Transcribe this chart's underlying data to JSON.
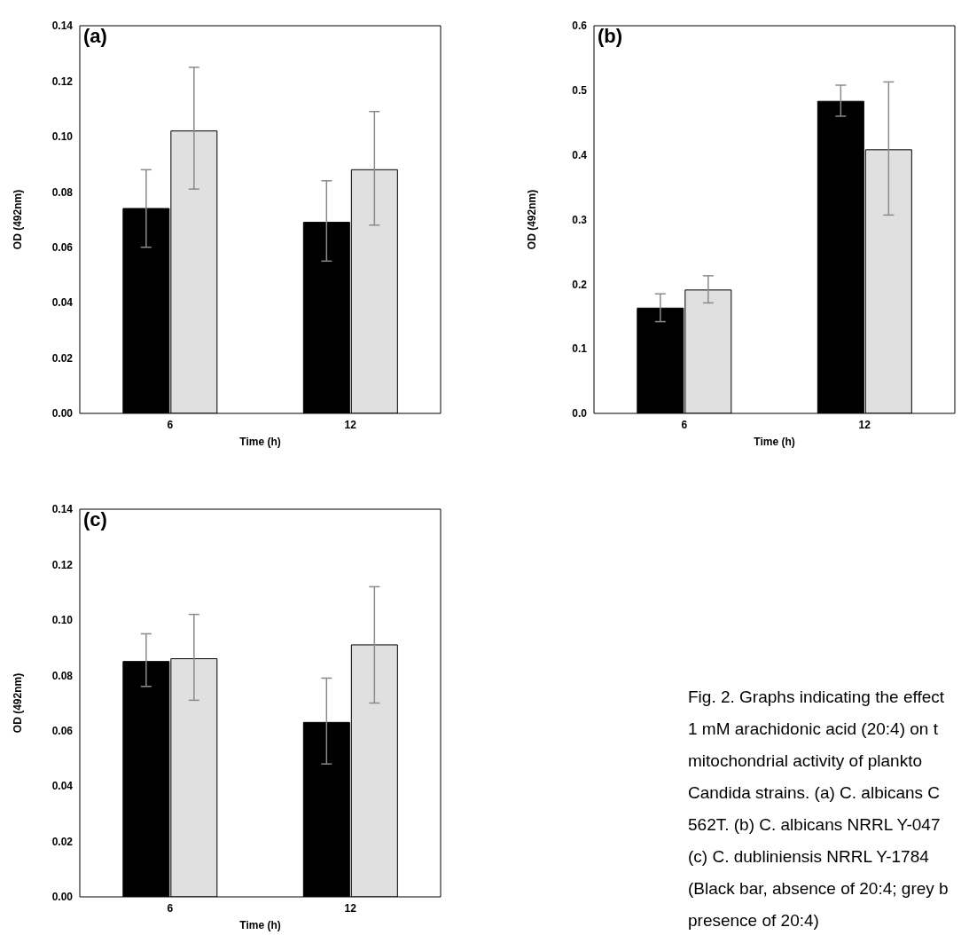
{
  "chart_data": [
    {
      "type": "bar",
      "title": "(a)",
      "xlabel": "Time (h)",
      "ylabel": "OD (492nm)",
      "categories": [
        "6",
        "12"
      ],
      "ylim": [
        0,
        0.14
      ],
      "yticks": [
        {
          "value": 0,
          "label": "0.00"
        },
        {
          "value": 0.02,
          "label": "0.02"
        },
        {
          "value": 0.04,
          "label": "0.04"
        },
        {
          "value": 0.06,
          "label": "0.06"
        },
        {
          "value": 0.08,
          "label": "0.08"
        },
        {
          "value": 0.1,
          "label": "0.10"
        },
        {
          "value": 0.12,
          "label": "0.12"
        },
        {
          "value": 0.14,
          "label": "0.14"
        }
      ],
      "legend": false,
      "grid": false,
      "series": [
        {
          "color": "#000000",
          "values": [
            0.074,
            0.069
          ],
          "errors": [
            [
              0.06,
              0.088
            ],
            [
              0.055,
              0.084
            ]
          ]
        },
        {
          "color": "#e0e0e0",
          "values": [
            0.102,
            0.088
          ],
          "errors": [
            [
              0.081,
              0.125
            ],
            [
              0.068,
              0.109
            ]
          ]
        }
      ]
    },
    {
      "type": "bar",
      "title": "(b)",
      "xlabel": "Time (h)",
      "ylabel": "OD (492nm)",
      "categories": [
        "6",
        "12"
      ],
      "ylim": [
        0,
        0.6
      ],
      "yticks": [
        {
          "value": 0,
          "label": "0.0"
        },
        {
          "value": 0.1,
          "label": "0.1"
        },
        {
          "value": 0.2,
          "label": "0.2"
        },
        {
          "value": 0.3,
          "label": "0.3"
        },
        {
          "value": 0.4,
          "label": "0.4"
        },
        {
          "value": 0.5,
          "label": "0.5"
        },
        {
          "value": 0.6,
          "label": "0.6"
        }
      ],
      "legend": false,
      "grid": false,
      "series": [
        {
          "color": "#000000",
          "values": [
            0.163,
            0.483
          ],
          "errors": [
            [
              0.142,
              0.185
            ],
            [
              0.46,
              0.508
            ]
          ]
        },
        {
          "color": "#e0e0e0",
          "values": [
            0.191,
            0.408
          ],
          "errors": [
            [
              0.171,
              0.213
            ],
            [
              0.307,
              0.513
            ]
          ]
        }
      ]
    },
    {
      "type": "bar",
      "title": "(c)",
      "xlabel": "Time (h)",
      "ylabel": "OD (492nm)",
      "categories": [
        "6",
        "12"
      ],
      "ylim": [
        0,
        0.14
      ],
      "yticks": [
        {
          "value": 0,
          "label": "0.00"
        },
        {
          "value": 0.02,
          "label": "0.02"
        },
        {
          "value": 0.04,
          "label": "0.04"
        },
        {
          "value": 0.06,
          "label": "0.06"
        },
        {
          "value": 0.08,
          "label": "0.08"
        },
        {
          "value": 0.1,
          "label": "0.10"
        },
        {
          "value": 0.12,
          "label": "0.12"
        },
        {
          "value": 0.14,
          "label": "0.14"
        }
      ],
      "legend": false,
      "grid": false,
      "series": [
        {
          "color": "#000000",
          "values": [
            0.085,
            0.063
          ],
          "errors": [
            [
              0.076,
              0.095
            ],
            [
              0.048,
              0.079
            ]
          ]
        },
        {
          "color": "#e0e0e0",
          "values": [
            0.086,
            0.091
          ],
          "errors": [
            [
              0.071,
              0.102
            ],
            [
              0.07,
              0.112
            ]
          ]
        }
      ]
    },
    {
      "type": "other",
      "annotations": [
        "Fig. 2. Graphs indicating the effect",
        "1 mM arachidonic acid (20:4) on t",
        "mitochondrial activity of plankto",
        "Candida strains. (a) C. albicans C",
        "562T. (b) C. albicans NRRL Y-047",
        "(c) C. dubliniensis NRRL Y-1784",
        "(Black bar, absence of 20:4; grey b",
        "presence of 20:4)"
      ]
    }
  ]
}
